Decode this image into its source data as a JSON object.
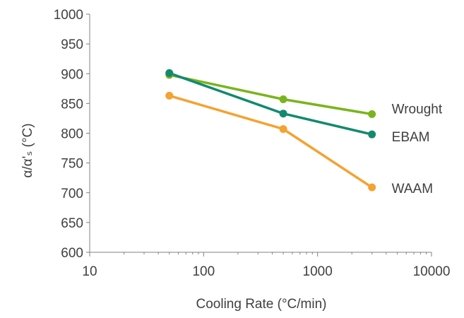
{
  "chart_data": {
    "type": "line",
    "title": "",
    "xlabel": "Cooling Rate (°C/min)",
    "ylabel": "α/α'ₛ (°C)",
    "x_scale": "log",
    "xlim": [
      10,
      10000
    ],
    "ylim": [
      600,
      1000
    ],
    "x_ticks": [
      "10",
      "100",
      "1000",
      "10000"
    ],
    "y_ticks": [
      "600",
      "650",
      "700",
      "750",
      "800",
      "850",
      "900",
      "950",
      "1000"
    ],
    "grid": false,
    "legend": "inline labels at right end of lines",
    "series": [
      {
        "name": "Wrought",
        "color": "#7ab41d",
        "x": [
          50,
          500,
          3000
        ],
        "y": [
          898,
          857,
          832
        ]
      },
      {
        "name": "EBAM",
        "color": "#138a6e",
        "x": [
          50,
          500,
          3000
        ],
        "y": [
          901,
          833,
          798
        ]
      },
      {
        "name": "WAAM",
        "color": "#f5a231",
        "x": [
          50,
          500,
          3000
        ],
        "y": [
          863,
          807,
          709
        ]
      }
    ]
  }
}
